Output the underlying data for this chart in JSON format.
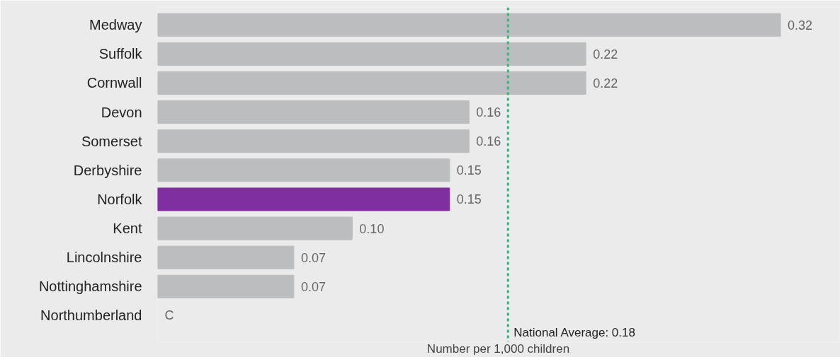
{
  "chart_data": {
    "type": "bar",
    "orientation": "horizontal",
    "categories": [
      "Medway",
      "Suffolk",
      "Cornwall",
      "Devon",
      "Somerset",
      "Derbyshire",
      "Norfolk",
      "Kent",
      "Lincolnshire",
      "Nottinghamshire",
      "Northumberland"
    ],
    "values": [
      0.32,
      0.22,
      0.22,
      0.16,
      0.16,
      0.15,
      0.15,
      0.1,
      0.07,
      0.07,
      null
    ],
    "value_labels": [
      "0.32",
      "0.22",
      "0.22",
      "0.16",
      "0.16",
      "0.15",
      "0.15",
      "0.10",
      "0.07",
      "0.07",
      "C"
    ],
    "colors": [
      "#bcbdbf",
      "#bcbdbf",
      "#bcbdbf",
      "#bcbdbf",
      "#bcbdbf",
      "#bcbdbf",
      "#7f2f9e",
      "#bcbdbf",
      "#bcbdbf",
      "#bcbdbf",
      "#bcbdbf"
    ],
    "xlabel": "Number per 1,000 children",
    "xlim": [
      0,
      0.35
    ],
    "tick_labels": "y",
    "grid": false,
    "ref_lines": [
      {
        "axis": "x",
        "value": 0.18,
        "label": "National Average: 0.18",
        "color": "#3cb371",
        "line_style": "dashed"
      }
    ]
  }
}
